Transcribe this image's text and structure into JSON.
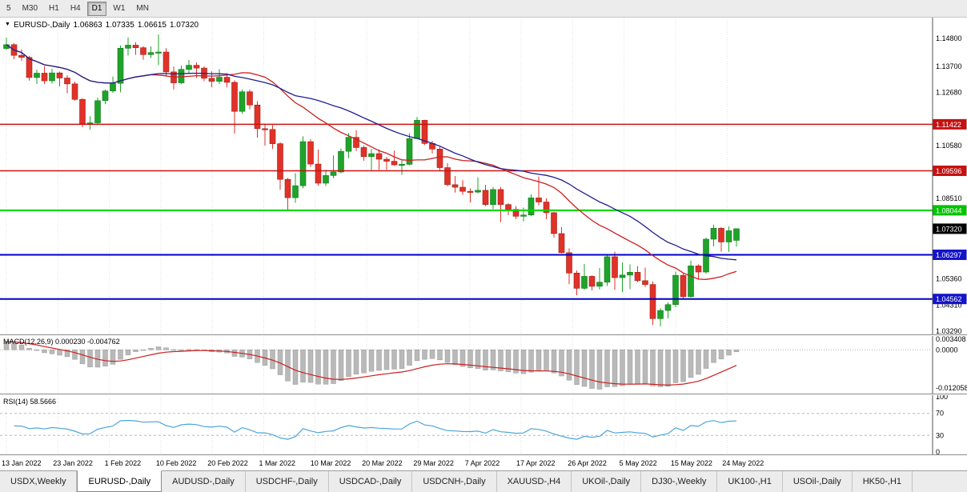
{
  "toolbar": {
    "periods": [
      "5",
      "M30",
      "H1",
      "H4",
      "D1",
      "W1",
      "MN"
    ],
    "active": "D1"
  },
  "chart": {
    "legend": {
      "symbol": "EURUSD-,Daily",
      "open": "1.06863",
      "high": "1.07335",
      "low": "1.06615",
      "close": "1.07320"
    },
    "price_axis": {
      "plain_labels": [
        {
          "text": "1.14800",
          "price": 1.148
        },
        {
          "text": "1.13700",
          "price": 1.137
        },
        {
          "text": "1.12680",
          "price": 1.1268
        },
        {
          "text": "1.10580",
          "price": 1.1058
        },
        {
          "text": "1.08510",
          "price": 1.0851
        },
        {
          "text": "1.05360",
          "price": 1.0536
        },
        {
          "text": "1.04310",
          "price": 1.0431
        },
        {
          "text": "1.03290",
          "price": 1.0329
        }
      ],
      "badges": [
        {
          "text": "1.11422",
          "price": 1.11422,
          "color": "#c41212",
          "text_color": "#ffffff"
        },
        {
          "text": "1.09596",
          "price": 1.09596,
          "color": "#c41212",
          "text_color": "#ffffff"
        },
        {
          "text": "1.08044",
          "price": 1.08044,
          "color": "#00c400",
          "text_color": "#ffffff"
        },
        {
          "text": "1.07320",
          "price": 1.0732,
          "color": "#000000",
          "text_color": "#ffffff"
        },
        {
          "text": "1.06297",
          "price": 1.06297,
          "color": "#1414c8",
          "text_color": "#ffffff"
        },
        {
          "text": "1.04562",
          "price": 1.04562,
          "color": "#1414c8",
          "text_color": "#ffffff"
        }
      ]
    },
    "hlines": [
      {
        "price": 1.11422,
        "color": "#cc1111",
        "width": 1.4
      },
      {
        "price": 1.09596,
        "color": "#cc1111",
        "width": 1.4
      },
      {
        "price": 1.08044,
        "color": "#00d800",
        "width": 2
      },
      {
        "price": 1.06297,
        "color": "#0000c8",
        "width": 2
      },
      {
        "price": 1.04562,
        "color": "#0000c8",
        "width": 2
      }
    ],
    "x_axis_labels": [
      "13 Jan 2022",
      "23 Jan 2022",
      "1 Feb 2022",
      "10 Feb 2022",
      "20 Feb 2022",
      "1 Mar 2022",
      "10 Mar 2022",
      "20 Mar 2022",
      "29 Mar 2022",
      "7 Apr 2022",
      "17 Apr 2022",
      "26 Apr 2022",
      "5 May 2022",
      "15 May 2022",
      "24 May 2022"
    ]
  },
  "chart_data": {
    "type": "candlestick",
    "symbol": "EURUSD-,Daily",
    "title": "EURUSD-,Daily 1.06863 1.07335 1.06615 1.07320",
    "price_range": [
      1.0317,
      1.1555
    ],
    "up_color": "#1fa32a",
    "down_color": "#e03228",
    "ma_fast": {
      "period": 20,
      "color": "#cc2020"
    },
    "ma_slow": {
      "period": 30,
      "color": "#20208c"
    },
    "candles": [
      [
        1.144,
        1.1482,
        1.1435,
        1.1455
      ],
      [
        1.1455,
        1.1461,
        1.1398,
        1.1413
      ],
      [
        1.1413,
        1.1436,
        1.1391,
        1.1405
      ],
      [
        1.1405,
        1.1411,
        1.1314,
        1.1326
      ],
      [
        1.1326,
        1.1357,
        1.1301,
        1.1343
      ],
      [
        1.1343,
        1.137,
        1.13,
        1.1313
      ],
      [
        1.1313,
        1.136,
        1.1302,
        1.1344
      ],
      [
        1.1344,
        1.1349,
        1.1291,
        1.1324
      ],
      [
        1.1324,
        1.1335,
        1.1264,
        1.1301
      ],
      [
        1.1301,
        1.131,
        1.1235,
        1.124
      ],
      [
        1.124,
        1.1245,
        1.1131,
        1.1144
      ],
      [
        1.1144,
        1.1174,
        1.1121,
        1.1148
      ],
      [
        1.1148,
        1.1248,
        1.1141,
        1.1235
      ],
      [
        1.1235,
        1.1279,
        1.1221,
        1.1273
      ],
      [
        1.1273,
        1.133,
        1.1266,
        1.1303
      ],
      [
        1.1303,
        1.1452,
        1.1268,
        1.1441
      ],
      [
        1.1441,
        1.1484,
        1.1412,
        1.1453
      ],
      [
        1.1453,
        1.1465,
        1.1415,
        1.1443
      ],
      [
        1.1443,
        1.1449,
        1.1396,
        1.1416
      ],
      [
        1.1416,
        1.1448,
        1.1403,
        1.1424
      ],
      [
        1.1424,
        1.1495,
        1.1375,
        1.1426
      ],
      [
        1.1426,
        1.1441,
        1.1329,
        1.1348
      ],
      [
        1.1348,
        1.1369,
        1.1279,
        1.1305
      ],
      [
        1.1305,
        1.1373,
        1.13,
        1.1358
      ],
      [
        1.1358,
        1.1395,
        1.134,
        1.1374
      ],
      [
        1.1374,
        1.1385,
        1.1324,
        1.1363
      ],
      [
        1.1363,
        1.137,
        1.1312,
        1.1323
      ],
      [
        1.1323,
        1.135,
        1.1288,
        1.1311
      ],
      [
        1.1311,
        1.1359,
        1.13,
        1.1327
      ],
      [
        1.1327,
        1.1343,
        1.1287,
        1.1307
      ],
      [
        1.1307,
        1.1315,
        1.1106,
        1.1193
      ],
      [
        1.1193,
        1.1279,
        1.1184,
        1.127
      ],
      [
        1.127,
        1.1279,
        1.1201,
        1.1218
      ],
      [
        1.1218,
        1.1233,
        1.109,
        1.1125
      ],
      [
        1.1125,
        1.1145,
        1.1058,
        1.1122
      ],
      [
        1.1122,
        1.1139,
        1.1045,
        1.1066
      ],
      [
        1.1066,
        1.1072,
        1.0885,
        1.0926
      ],
      [
        1.0926,
        1.0932,
        1.0806,
        1.0854
      ],
      [
        1.0854,
        1.095,
        1.0834,
        1.0901
      ],
      [
        1.0901,
        1.1095,
        1.0891,
        1.1074
      ],
      [
        1.1074,
        1.1084,
        1.0975,
        1.0986
      ],
      [
        1.0986,
        1.1043,
        1.0901,
        1.0911
      ],
      [
        1.0911,
        1.0963,
        1.09,
        1.0941
      ],
      [
        1.0941,
        1.102,
        1.093,
        1.0955
      ],
      [
        1.0955,
        1.1047,
        1.095,
        1.1036
      ],
      [
        1.1036,
        1.1108,
        1.1009,
        1.1091
      ],
      [
        1.1091,
        1.1119,
        1.1037,
        1.1051
      ],
      [
        1.1051,
        1.1059,
        1.0999,
        1.1015
      ],
      [
        1.1015,
        1.1046,
        1.0961,
        1.1027
      ],
      [
        1.1027,
        1.1044,
        1.0963,
        1.1005
      ],
      [
        1.1005,
        1.1014,
        1.0964,
        1.0997
      ],
      [
        1.0997,
        1.1039,
        1.0979,
        1.0983
      ],
      [
        1.0983,
        1.1,
        1.0944,
        1.0985
      ],
      [
        1.0985,
        1.1107,
        1.0981,
        1.1086
      ],
      [
        1.1086,
        1.1171,
        1.1084,
        1.1158
      ],
      [
        1.1158,
        1.116,
        1.1061,
        1.1067
      ],
      [
        1.1067,
        1.1077,
        1.1028,
        1.1045
      ],
      [
        1.1045,
        1.1054,
        1.0961,
        1.0972
      ],
      [
        1.0972,
        1.099,
        1.0899,
        1.0905
      ],
      [
        1.0905,
        1.0939,
        1.0874,
        1.0895
      ],
      [
        1.0895,
        1.0923,
        1.0865,
        1.0879
      ],
      [
        1.0879,
        1.089,
        1.0836,
        1.0876
      ],
      [
        1.0876,
        1.0934,
        1.0871,
        1.0883
      ],
      [
        1.0883,
        1.0904,
        1.0821,
        1.0827
      ],
      [
        1.0827,
        1.0896,
        1.0809,
        1.0886
      ],
      [
        1.0886,
        1.0896,
        1.0758,
        1.0827
      ],
      [
        1.0827,
        1.0832,
        1.0785,
        1.0808
      ],
      [
        1.0808,
        1.0821,
        1.077,
        1.0781
      ],
      [
        1.0781,
        1.0815,
        1.0761,
        1.0786
      ],
      [
        1.0786,
        1.0867,
        1.0781,
        1.0853
      ],
      [
        1.0853,
        1.0937,
        1.0824,
        1.0837
      ],
      [
        1.0837,
        1.0852,
        1.077,
        1.0795
      ],
      [
        1.0795,
        1.0798,
        1.0697,
        1.0713
      ],
      [
        1.0713,
        1.0738,
        1.0635,
        1.0638
      ],
      [
        1.0638,
        1.0655,
        1.0514,
        1.0558
      ],
      [
        1.0558,
        1.0568,
        1.0471,
        1.0498
      ],
      [
        1.0498,
        1.0593,
        1.0492,
        1.0545
      ],
      [
        1.0545,
        1.0549,
        1.049,
        1.0506
      ],
      [
        1.0506,
        1.0578,
        1.0493,
        1.0522
      ],
      [
        1.0522,
        1.0631,
        1.0507,
        1.0622
      ],
      [
        1.0622,
        1.0642,
        1.0492,
        1.054
      ],
      [
        1.054,
        1.0599,
        1.0483,
        1.055
      ],
      [
        1.055,
        1.0592,
        1.0495,
        1.0561
      ],
      [
        1.0561,
        1.0585,
        1.0522,
        1.0528
      ],
      [
        1.0528,
        1.0579,
        1.0503,
        1.0513
      ],
      [
        1.0513,
        1.0525,
        1.0354,
        1.0379
      ],
      [
        1.0379,
        1.042,
        1.0349,
        1.0411
      ],
      [
        1.0411,
        1.0443,
        1.038,
        1.0434
      ],
      [
        1.0434,
        1.0564,
        1.0424,
        1.0549
      ],
      [
        1.0549,
        1.0556,
        1.0459,
        1.0465
      ],
      [
        1.0465,
        1.0607,
        1.0462,
        1.0586
      ],
      [
        1.0586,
        1.0592,
        1.0532,
        1.0562
      ],
      [
        1.0562,
        1.0697,
        1.0556,
        1.0691
      ],
      [
        1.0691,
        1.0748,
        1.0663,
        1.0734
      ],
      [
        1.0734,
        1.0739,
        1.0642,
        1.068
      ],
      [
        1.068,
        1.0741,
        1.0641,
        1.0724
      ],
      [
        1.06863,
        1.07335,
        1.06615,
        1.0732
      ]
    ]
  },
  "indicators": {
    "macd": {
      "label": "MACD(12,26,9) 0.000230 -0.004762",
      "main_value": "0.000230",
      "signal_value": "-0.004762",
      "axis_labels": [
        {
          "text": "0.003408",
          "value": 0.003408
        },
        {
          "text": "0.0000",
          "value": 0
        },
        {
          "text": "-0.012058",
          "value": -0.012058
        }
      ],
      "histogram_color": "#b9b9b9",
      "signal_color": "#cc2020"
    },
    "rsi": {
      "label": "RSI(14) 58.5666",
      "value": "58.5666",
      "axis_labels": [
        {
          "text": "100",
          "value": 100
        },
        {
          "text": "70",
          "value": 70
        },
        {
          "text": "30",
          "value": 30
        },
        {
          "text": "0",
          "value": 0
        }
      ],
      "levels": [
        70,
        30
      ],
      "line_color": "#4da6d9"
    }
  },
  "tabs": {
    "items": [
      "USDX,Weekly",
      "EURUSD-,Daily",
      "AUDUSD-,Daily",
      "USDCHF-,Daily",
      "USDCAD-,Daily",
      "USDCNH-,Daily",
      "XAUUSD-,H4",
      "UKOil-,Daily",
      "DJ30-,Weekly",
      "UK100-,H1",
      "USOil-,Daily",
      "HK50-,H1"
    ],
    "active": "EURUSD-,Daily"
  }
}
